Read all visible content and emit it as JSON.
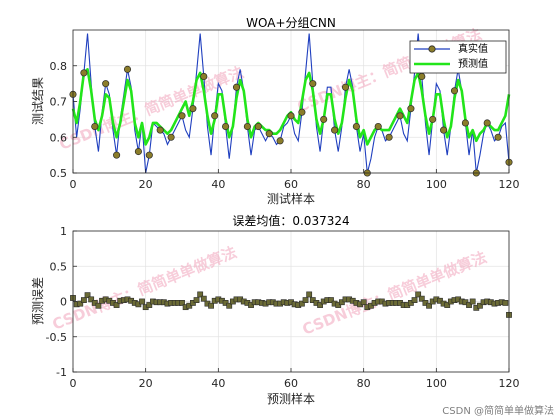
{
  "colors": {
    "true_line": "#1f3fbf",
    "true_marker_face": "#8b7d2a",
    "true_marker_edge": "#2a2a2a",
    "pred_line": "#22e51a",
    "error_marker_face": "#6b6b36",
    "error_marker_edge": "#2a2a2a",
    "grid": "#e3e3e3",
    "axis": "#262626",
    "watermark": "#f2a6bd"
  },
  "watermark_text": "CSDN博主：简简单单做算法",
  "credit_text": "CSDN @简简单单做算法",
  "chart_data": [
    {
      "type": "line",
      "title": "WOA+分组CNN",
      "xlabel": "测试样本",
      "ylabel": "测试结果",
      "xlim": [
        0,
        120
      ],
      "ylim": [
        0.5,
        0.9
      ],
      "xticks": [
        0,
        20,
        40,
        60,
        80,
        100,
        120
      ],
      "yticks": [
        0.5,
        0.6,
        0.7,
        0.8
      ],
      "grid": true,
      "legend": {
        "position": "top-right",
        "entries": [
          "真实值",
          "预测值"
        ]
      },
      "series": [
        {
          "name": "真实值",
          "style": "line-marker",
          "values": [
            0.72,
            0.6,
            0.68,
            0.78,
            0.89,
            0.75,
            0.63,
            0.56,
            0.67,
            0.75,
            0.72,
            0.62,
            0.55,
            0.65,
            0.72,
            0.79,
            0.74,
            0.62,
            0.56,
            0.64,
            0.5,
            0.55,
            0.64,
            0.63,
            0.62,
            0.61,
            0.58,
            0.6,
            0.62,
            0.64,
            0.66,
            0.62,
            0.6,
            0.68,
            0.78,
            0.89,
            0.77,
            0.63,
            0.55,
            0.66,
            0.75,
            0.73,
            0.63,
            0.54,
            0.63,
            0.74,
            0.79,
            0.73,
            0.63,
            0.55,
            0.62,
            0.63,
            0.61,
            0.59,
            0.61,
            0.6,
            0.58,
            0.59,
            0.63,
            0.64,
            0.66,
            0.61,
            0.59,
            0.67,
            0.78,
            0.89,
            0.75,
            0.63,
            0.56,
            0.65,
            0.74,
            0.74,
            0.62,
            0.56,
            0.63,
            0.74,
            0.79,
            0.74,
            0.63,
            0.56,
            0.61,
            0.5,
            0.54,
            0.6,
            0.63,
            0.62,
            0.59,
            0.6,
            0.62,
            0.64,
            0.66,
            0.61,
            0.59,
            0.68,
            0.78,
            0.89,
            0.77,
            0.64,
            0.55,
            0.65,
            0.75,
            0.73,
            0.62,
            0.55,
            0.63,
            0.73,
            0.79,
            0.73,
            0.64,
            0.55,
            0.62,
            0.5,
            0.55,
            0.61,
            0.64,
            0.62,
            0.59,
            0.6,
            0.63,
            0.64,
            0.53
          ]
        },
        {
          "name": "预测值",
          "style": "line",
          "values": [
            0.68,
            0.64,
            0.7,
            0.78,
            0.79,
            0.73,
            0.65,
            0.62,
            0.66,
            0.72,
            0.71,
            0.64,
            0.6,
            0.64,
            0.7,
            0.76,
            0.73,
            0.64,
            0.6,
            0.64,
            0.58,
            0.6,
            0.64,
            0.64,
            0.63,
            0.62,
            0.61,
            0.62,
            0.64,
            0.66,
            0.68,
            0.7,
            0.66,
            0.7,
            0.76,
            0.78,
            0.73,
            0.66,
            0.61,
            0.65,
            0.72,
            0.72,
            0.65,
            0.6,
            0.63,
            0.71,
            0.76,
            0.73,
            0.65,
            0.6,
            0.63,
            0.64,
            0.63,
            0.62,
            0.62,
            0.61,
            0.61,
            0.62,
            0.64,
            0.66,
            0.67,
            0.65,
            0.64,
            0.7,
            0.76,
            0.78,
            0.73,
            0.65,
            0.61,
            0.65,
            0.72,
            0.72,
            0.65,
            0.61,
            0.64,
            0.71,
            0.76,
            0.73,
            0.65,
            0.6,
            0.62,
            0.58,
            0.6,
            0.62,
            0.63,
            0.62,
            0.62,
            0.62,
            0.64,
            0.66,
            0.68,
            0.66,
            0.64,
            0.7,
            0.76,
            0.78,
            0.73,
            0.66,
            0.61,
            0.65,
            0.72,
            0.72,
            0.65,
            0.6,
            0.63,
            0.71,
            0.76,
            0.73,
            0.65,
            0.6,
            0.62,
            0.59,
            0.61,
            0.62,
            0.64,
            0.63,
            0.62,
            0.62,
            0.64,
            0.66,
            0.72
          ]
        }
      ]
    },
    {
      "type": "scatter",
      "title": "误差均值：0.037324",
      "xlabel": "预测样本",
      "ylabel": "预测误差",
      "xlim": [
        0,
        120
      ],
      "ylim": [
        -1,
        1
      ],
      "xticks": [
        0,
        20,
        40,
        60,
        80,
        100,
        120
      ],
      "yticks": [
        -1,
        -0.5,
        0,
        0.5,
        1
      ],
      "grid": true,
      "series": [
        {
          "marker": "square",
          "values": [
            0.05,
            -0.04,
            -0.03,
            0.02,
            0.09,
            0.03,
            -0.02,
            -0.06,
            0.01,
            0.03,
            0.01,
            -0.02,
            -0.05,
            0.01,
            0.02,
            0.03,
            0.01,
            -0.02,
            -0.04,
            0.0,
            -0.08,
            -0.05,
            0.0,
            -0.01,
            -0.01,
            -0.01,
            -0.03,
            -0.02,
            -0.02,
            -0.02,
            -0.02,
            -0.08,
            -0.06,
            -0.02,
            0.02,
            0.1,
            0.04,
            -0.03,
            -0.06,
            0.01,
            0.03,
            0.01,
            -0.02,
            -0.06,
            0.0,
            0.03,
            0.03,
            0.0,
            -0.02,
            -0.05,
            -0.01,
            -0.01,
            -0.02,
            -0.03,
            -0.01,
            -0.01,
            -0.03,
            -0.03,
            -0.01,
            -0.02,
            -0.01,
            -0.04,
            -0.05,
            -0.03,
            0.02,
            0.1,
            0.02,
            -0.02,
            -0.05,
            0.0,
            0.02,
            0.02,
            -0.03,
            -0.05,
            -0.01,
            0.03,
            0.03,
            0.01,
            -0.02,
            -0.04,
            -0.01,
            -0.08,
            -0.06,
            -0.02,
            0.0,
            0.0,
            -0.03,
            -0.02,
            -0.02,
            -0.02,
            -0.02,
            -0.05,
            -0.05,
            -0.02,
            0.02,
            0.1,
            0.04,
            -0.02,
            -0.06,
            0.0,
            0.03,
            0.01,
            -0.03,
            -0.05,
            0.0,
            0.02,
            0.03,
            0.0,
            -0.01,
            -0.05,
            0.0,
            -0.09,
            -0.06,
            -0.01,
            0.0,
            -0.01,
            -0.03,
            -0.02,
            -0.01,
            -0.02,
            -0.19
          ]
        }
      ]
    }
  ]
}
